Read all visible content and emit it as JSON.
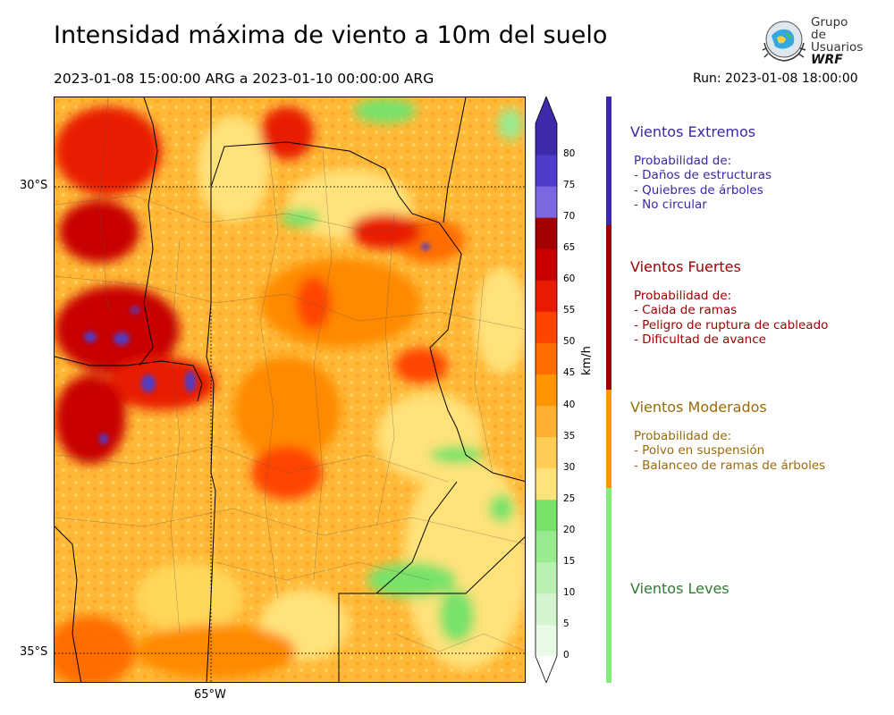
{
  "header": {
    "title": "Intensidad máxima de viento a 10m del suelo",
    "period": "2023-01-08 15:00:00 ARG  a  2023-01-10 00:00:00 ARG",
    "run": "Run: 2023-01-08 18:00:00"
  },
  "logo": {
    "line1": "Grupo de",
    "line2": "Usuarios",
    "line3": "WRF"
  },
  "map": {
    "lat_labels": [
      "30°S",
      "35°S"
    ],
    "lon_labels": [
      "65°W"
    ]
  },
  "colorbar": {
    "unit": "km/h",
    "ticks": [
      "0",
      "5",
      "10",
      "15",
      "20",
      "25",
      "30",
      "35",
      "40",
      "45",
      "50",
      "55",
      "60",
      "65",
      "70",
      "75",
      "80"
    ],
    "levels": [
      0,
      5,
      10,
      15,
      20,
      25,
      30,
      35,
      40,
      45,
      50,
      55,
      60,
      65,
      70,
      75,
      80
    ],
    "colors": [
      "#e9fbe6",
      "#d4f6cf",
      "#b9f1b2",
      "#9aeb90",
      "#78e26a",
      "#ffe27a",
      "#ffcc55",
      "#ffb030",
      "#ff9500",
      "#ff6d00",
      "#ff4400",
      "#e81a00",
      "#c80000",
      "#a30000",
      "#7b68e0",
      "#4f3cc8",
      "#3d2aa8"
    ],
    "over_color": "#3d2aa8",
    "under_color": "#ffffff"
  },
  "categories": [
    {
      "name": "Vientos Extremos",
      "color": "#3b27a8",
      "lines": [
        "Probabilidad de:",
        "- Daños de estructuras",
        "- Quiebres de árboles",
        "- No circular"
      ]
    },
    {
      "name": "Vientos Fuertes",
      "color": "#a00000",
      "lines": [
        "Probabilidad de:",
        "- Caida de ramas",
        "- Peligro de ruptura de cableado",
        "- Dificultad de avance"
      ]
    },
    {
      "name": "Vientos Moderados",
      "color": "#9c6a0a",
      "lines": [
        "Probabilidad de:",
        "- Polvo en suspensión",
        "- Balanceo de ramas de árboles"
      ]
    },
    {
      "name": "Vientos Leves",
      "color": "#2e7d32",
      "lines": []
    }
  ],
  "band_colors": [
    "#3b27a8",
    "#a00000",
    "#ff9800",
    "#7ef07a"
  ]
}
